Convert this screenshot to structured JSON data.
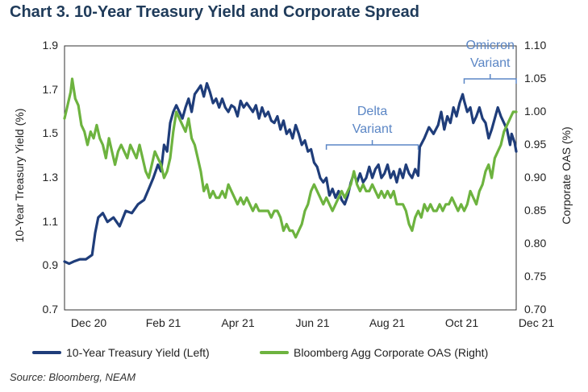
{
  "title": "Chart 3. 10-Year Treasury Yield and Corporate Spread",
  "source": "Source: Bloomberg, NEAM",
  "chart_data": {
    "type": "line",
    "title": "Chart 3. 10-Year Treasury Yield and Corporate Spread",
    "x_ticks": [
      "Dec 20",
      "Feb 21",
      "Apr 21",
      "Jun 21",
      "Aug 21",
      "Oct 21",
      "Dec 21"
    ],
    "y_left": {
      "label": "10-Year Treasury Yield (%)",
      "ticks": [
        "0.7",
        "0.9",
        "1.1",
        "1.3",
        "1.5",
        "1.7",
        "1.9"
      ],
      "min": 0.7,
      "max": 1.9
    },
    "y_right": {
      "label": "Corporate OAS (%)",
      "ticks": [
        "0.70",
        "0.75",
        "0.80",
        "0.85",
        "0.90",
        "0.95",
        "1.00",
        "1.05",
        "1.10"
      ],
      "min": 0.7,
      "max": 1.1
    },
    "series": [
      {
        "name": "10-Year Treasury Yield (Left)",
        "axis": "left",
        "color": "#1f3d7a",
        "points": [
          [
            0,
            0.92
          ],
          [
            3,
            0.91
          ],
          [
            6,
            0.92
          ],
          [
            10,
            0.93
          ],
          [
            14,
            0.93
          ],
          [
            18,
            0.95
          ],
          [
            20,
            1.05
          ],
          [
            22,
            1.12
          ],
          [
            25,
            1.14
          ],
          [
            28,
            1.1
          ],
          [
            32,
            1.12
          ],
          [
            36,
            1.08
          ],
          [
            40,
            1.15
          ],
          [
            44,
            1.14
          ],
          [
            48,
            1.18
          ],
          [
            52,
            1.2
          ],
          [
            55,
            1.25
          ],
          [
            58,
            1.3
          ],
          [
            61,
            1.36
          ],
          [
            63,
            1.33
          ],
          [
            65,
            1.45
          ],
          [
            67,
            1.42
          ],
          [
            69,
            1.55
          ],
          [
            71,
            1.6
          ],
          [
            73,
            1.63
          ],
          [
            75,
            1.6
          ],
          [
            77,
            1.57
          ],
          [
            79,
            1.62
          ],
          [
            81,
            1.66
          ],
          [
            83,
            1.6
          ],
          [
            85,
            1.68
          ],
          [
            87,
            1.7
          ],
          [
            89,
            1.72
          ],
          [
            91,
            1.67
          ],
          [
            93,
            1.73
          ],
          [
            95,
            1.69
          ],
          [
            97,
            1.64
          ],
          [
            99,
            1.66
          ],
          [
            101,
            1.62
          ],
          [
            103,
            1.66
          ],
          [
            105,
            1.62
          ],
          [
            107,
            1.6
          ],
          [
            109,
            1.63
          ],
          [
            111,
            1.62
          ],
          [
            113,
            1.58
          ],
          [
            115,
            1.65
          ],
          [
            117,
            1.62
          ],
          [
            119,
            1.64
          ],
          [
            121,
            1.62
          ],
          [
            123,
            1.6
          ],
          [
            125,
            1.63
          ],
          [
            127,
            1.57
          ],
          [
            129,
            1.62
          ],
          [
            131,
            1.58
          ],
          [
            133,
            1.6
          ],
          [
            135,
            1.56
          ],
          [
            137,
            1.55
          ],
          [
            139,
            1.58
          ],
          [
            141,
            1.52
          ],
          [
            143,
            1.56
          ],
          [
            145,
            1.5
          ],
          [
            147,
            1.52
          ],
          [
            149,
            1.48
          ],
          [
            151,
            1.54
          ],
          [
            153,
            1.5
          ],
          [
            155,
            1.45
          ],
          [
            157,
            1.47
          ],
          [
            159,
            1.42
          ],
          [
            161,
            1.43
          ],
          [
            163,
            1.37
          ],
          [
            165,
            1.35
          ],
          [
            167,
            1.3
          ],
          [
            169,
            1.28
          ],
          [
            171,
            1.3
          ],
          [
            173,
            1.22
          ],
          [
            175,
            1.25
          ],
          [
            177,
            1.21
          ],
          [
            179,
            1.24
          ],
          [
            181,
            1.2
          ],
          [
            183,
            1.18
          ],
          [
            185,
            1.22
          ],
          [
            187,
            1.28
          ],
          [
            189,
            1.32
          ],
          [
            191,
            1.28
          ],
          [
            193,
            1.32
          ],
          [
            195,
            1.28
          ],
          [
            197,
            1.3
          ],
          [
            199,
            1.35
          ],
          [
            201,
            1.3
          ],
          [
            203,
            1.34
          ],
          [
            205,
            1.36
          ],
          [
            207,
            1.3
          ],
          [
            209,
            1.32
          ],
          [
            211,
            1.36
          ],
          [
            213,
            1.3
          ],
          [
            215,
            1.33
          ],
          [
            217,
            1.28
          ],
          [
            219,
            1.34
          ],
          [
            221,
            1.3
          ],
          [
            223,
            1.36
          ],
          [
            225,
            1.32
          ],
          [
            227,
            1.3
          ],
          [
            229,
            1.34
          ],
          [
            231,
            1.31
          ],
          [
            232,
            1.44
          ],
          [
            235,
            1.48
          ],
          [
            238,
            1.53
          ],
          [
            241,
            1.5
          ],
          [
            244,
            1.54
          ],
          [
            246,
            1.6
          ],
          [
            248,
            1.52
          ],
          [
            250,
            1.58
          ],
          [
            252,
            1.55
          ],
          [
            254,
            1.62
          ],
          [
            256,
            1.58
          ],
          [
            258,
            1.64
          ],
          [
            260,
            1.68
          ],
          [
            261,
            1.65
          ],
          [
            263,
            1.6
          ],
          [
            265,
            1.62
          ],
          [
            267,
            1.55
          ],
          [
            269,
            1.58
          ],
          [
            271,
            1.62
          ],
          [
            273,
            1.57
          ],
          [
            275,
            1.55
          ],
          [
            277,
            1.48
          ],
          [
            279,
            1.52
          ],
          [
            281,
            1.57
          ],
          [
            283,
            1.62
          ],
          [
            285,
            1.58
          ],
          [
            287,
            1.55
          ],
          [
            289,
            1.52
          ],
          [
            291,
            1.45
          ],
          [
            292,
            1.5
          ],
          [
            294,
            1.46
          ],
          [
            295,
            1.42
          ]
        ]
      },
      {
        "name": "Bloomberg Agg Corporate OAS (Right)",
        "axis": "right",
        "color": "#6db33f",
        "points": [
          [
            0,
            0.99
          ],
          [
            2,
            1.01
          ],
          [
            4,
            1.03
          ],
          [
            5,
            1.05
          ],
          [
            7,
            1.02
          ],
          [
            9,
            1.01
          ],
          [
            11,
            0.98
          ],
          [
            13,
            0.97
          ],
          [
            15,
            0.95
          ],
          [
            17,
            0.97
          ],
          [
            19,
            0.96
          ],
          [
            21,
            0.98
          ],
          [
            23,
            0.96
          ],
          [
            25,
            0.95
          ],
          [
            27,
            0.93
          ],
          [
            29,
            0.96
          ],
          [
            31,
            0.94
          ],
          [
            33,
            0.92
          ],
          [
            35,
            0.94
          ],
          [
            37,
            0.95
          ],
          [
            39,
            0.94
          ],
          [
            41,
            0.93
          ],
          [
            43,
            0.95
          ],
          [
            45,
            0.94
          ],
          [
            47,
            0.93
          ],
          [
            49,
            0.95
          ],
          [
            51,
            0.93
          ],
          [
            53,
            0.91
          ],
          [
            55,
            0.9
          ],
          [
            57,
            0.92
          ],
          [
            59,
            0.94
          ],
          [
            61,
            0.93
          ],
          [
            63,
            0.92
          ],
          [
            65,
            0.9
          ],
          [
            67,
            0.91
          ],
          [
            69,
            0.93
          ],
          [
            71,
            0.97
          ],
          [
            73,
            1.0
          ],
          [
            75,
            0.99
          ],
          [
            77,
            0.98
          ],
          [
            79,
            0.97
          ],
          [
            81,
            0.99
          ],
          [
            83,
            0.96
          ],
          [
            85,
            0.95
          ],
          [
            87,
            0.93
          ],
          [
            89,
            0.91
          ],
          [
            91,
            0.88
          ],
          [
            93,
            0.89
          ],
          [
            95,
            0.87
          ],
          [
            97,
            0.88
          ],
          [
            99,
            0.87
          ],
          [
            101,
            0.87
          ],
          [
            103,
            0.88
          ],
          [
            105,
            0.87
          ],
          [
            107,
            0.89
          ],
          [
            109,
            0.88
          ],
          [
            111,
            0.87
          ],
          [
            113,
            0.86
          ],
          [
            115,
            0.87
          ],
          [
            117,
            0.86
          ],
          [
            119,
            0.87
          ],
          [
            121,
            0.86
          ],
          [
            123,
            0.85
          ],
          [
            125,
            0.86
          ],
          [
            127,
            0.85
          ],
          [
            129,
            0.85
          ],
          [
            131,
            0.85
          ],
          [
            133,
            0.85
          ],
          [
            135,
            0.84
          ],
          [
            137,
            0.85
          ],
          [
            139,
            0.85
          ],
          [
            141,
            0.84
          ],
          [
            143,
            0.82
          ],
          [
            145,
            0.83
          ],
          [
            147,
            0.82
          ],
          [
            149,
            0.82
          ],
          [
            151,
            0.81
          ],
          [
            153,
            0.82
          ],
          [
            155,
            0.83
          ],
          [
            157,
            0.85
          ],
          [
            159,
            0.86
          ],
          [
            161,
            0.88
          ],
          [
            163,
            0.89
          ],
          [
            165,
            0.88
          ],
          [
            167,
            0.87
          ],
          [
            169,
            0.86
          ],
          [
            171,
            0.87
          ],
          [
            173,
            0.86
          ],
          [
            175,
            0.85
          ],
          [
            177,
            0.86
          ],
          [
            179,
            0.87
          ],
          [
            181,
            0.88
          ],
          [
            183,
            0.87
          ],
          [
            185,
            0.88
          ],
          [
            187,
            0.89
          ],
          [
            189,
            0.91
          ],
          [
            191,
            0.89
          ],
          [
            193,
            0.88
          ],
          [
            195,
            0.89
          ],
          [
            197,
            0.88
          ],
          [
            199,
            0.88
          ],
          [
            201,
            0.89
          ],
          [
            203,
            0.88
          ],
          [
            205,
            0.87
          ],
          [
            207,
            0.88
          ],
          [
            209,
            0.87
          ],
          [
            211,
            0.88
          ],
          [
            213,
            0.87
          ],
          [
            215,
            0.88
          ],
          [
            217,
            0.86
          ],
          [
            219,
            0.86
          ],
          [
            221,
            0.86
          ],
          [
            223,
            0.85
          ],
          [
            225,
            0.83
          ],
          [
            227,
            0.82
          ],
          [
            229,
            0.84
          ],
          [
            231,
            0.85
          ],
          [
            233,
            0.84
          ],
          [
            235,
            0.86
          ],
          [
            237,
            0.85
          ],
          [
            239,
            0.86
          ],
          [
            241,
            0.85
          ],
          [
            243,
            0.85
          ],
          [
            245,
            0.86
          ],
          [
            247,
            0.85
          ],
          [
            249,
            0.86
          ],
          [
            251,
            0.86
          ],
          [
            253,
            0.87
          ],
          [
            255,
            0.86
          ],
          [
            257,
            0.85
          ],
          [
            259,
            0.86
          ],
          [
            261,
            0.85
          ],
          [
            263,
            0.86
          ],
          [
            265,
            0.88
          ],
          [
            267,
            0.87
          ],
          [
            269,
            0.86
          ],
          [
            271,
            0.88
          ],
          [
            273,
            0.89
          ],
          [
            275,
            0.91
          ],
          [
            277,
            0.92
          ],
          [
            279,
            0.9
          ],
          [
            281,
            0.93
          ],
          [
            283,
            0.94
          ],
          [
            285,
            0.95
          ],
          [
            287,
            0.97
          ],
          [
            289,
            0.98
          ],
          [
            291,
            0.99
          ],
          [
            293,
            1.0
          ],
          [
            295,
            1.0
          ]
        ]
      }
    ],
    "annotations": [
      {
        "line1": "Delta",
        "line2": "Variant",
        "from": 171,
        "to": 231
      },
      {
        "line1": "Omicron",
        "line2": "Variant",
        "from": 261,
        "to": 295
      }
    ]
  }
}
